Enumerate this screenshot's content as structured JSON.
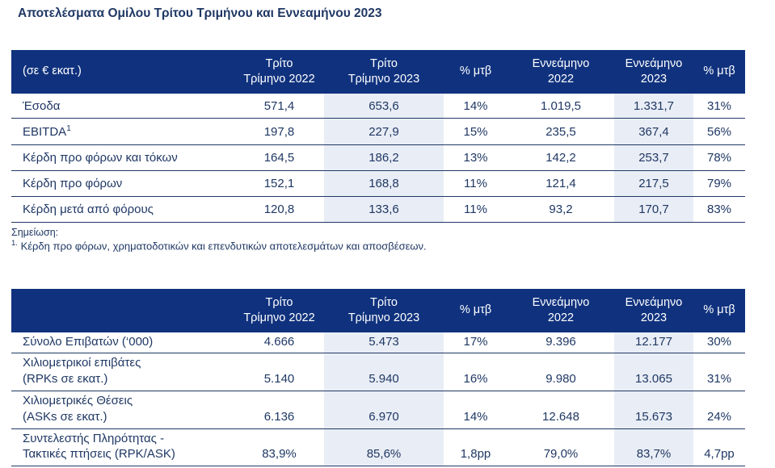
{
  "page": {
    "title": "Αποτελέσματα Ομίλου Τρίτου Τριμήνου και Εννεαμήνου 2023"
  },
  "colors": {
    "header_background": "#10327E",
    "text_navy": "#1F3864",
    "shaded_column": "#E9EDF5",
    "row_line": "#1F3864"
  },
  "table1": {
    "headers": [
      "(σε € εκατ.)",
      "Τρίτο\nΤρίμηνο 2022",
      "Τρίτο\nΤρίμηνο 2023",
      "% μτβ",
      "Εννεάμηνο\n2022",
      "Εννεάμηνο\n2023",
      "% μτβ"
    ],
    "rows": [
      {
        "label": "Έσοδα",
        "sup": "",
        "values": [
          "571,4",
          "653,6",
          "14%",
          "1.019,5",
          "1.331,7",
          "31%"
        ]
      },
      {
        "label": "EBITDA",
        "sup": "1",
        "values": [
          "197,8",
          "227,9",
          "15%",
          "235,5",
          "367,4",
          "56%"
        ]
      },
      {
        "label": "Κέρδη προ φόρων και τόκων",
        "sup": "",
        "values": [
          "164,5",
          "186,2",
          "13%",
          "142,2",
          "253,7",
          "78%"
        ]
      },
      {
        "label": "Κέρδη προ φόρων",
        "sup": "",
        "values": [
          "152,1",
          "168,8",
          "11%",
          "121,4",
          "217,5",
          "79%"
        ]
      },
      {
        "label": "Κέρδη μετά από φόρους",
        "sup": "",
        "values": [
          "120,8",
          "133,6",
          "11%",
          "93,2",
          "170,7",
          "83%"
        ]
      }
    ]
  },
  "note": {
    "heading": "Σημείωση:",
    "marker": "1.",
    "text": "Κέρδη προ φόρων, χρηματοδοτικών και επενδυτικών αποτελεσμάτων και αποσβέσεων."
  },
  "table2": {
    "headers": [
      "",
      "Τρίτο\nΤρίμηνο 2022",
      "Τρίτο\nΤρίμηνο 2023",
      "% μτβ",
      "Εννεάμηνο\n2022",
      "Εννεάμηνο\n2023",
      "% μτβ"
    ],
    "rows": [
      {
        "label": "Σύνολο Επιβατών (‘000)",
        "values": [
          "4.666",
          "5.473",
          "17%",
          "9.396",
          "12.177",
          "30%"
        ]
      },
      {
        "label": "Χιλιομετρικοί επιβάτες\n(RPKs σε εκατ.)",
        "values": [
          "5.140",
          "5.940",
          "16%",
          "9.980",
          "13.065",
          "31%"
        ]
      },
      {
        "label": "Χιλιομετρικές Θέσεις\n(ASKs σε εκατ.)",
        "values": [
          "6.136",
          "6.970",
          "14%",
          "12.648",
          "15.673",
          "24%"
        ]
      },
      {
        "label": "Συντελεστής Πληρότητας -\nΤακτικές πτήσεις (RPK/ASK)",
        "values": [
          "83,9%",
          "85,6%",
          "1,8pp",
          "79,0%",
          "83,7%",
          "4,7pp"
        ]
      }
    ]
  }
}
